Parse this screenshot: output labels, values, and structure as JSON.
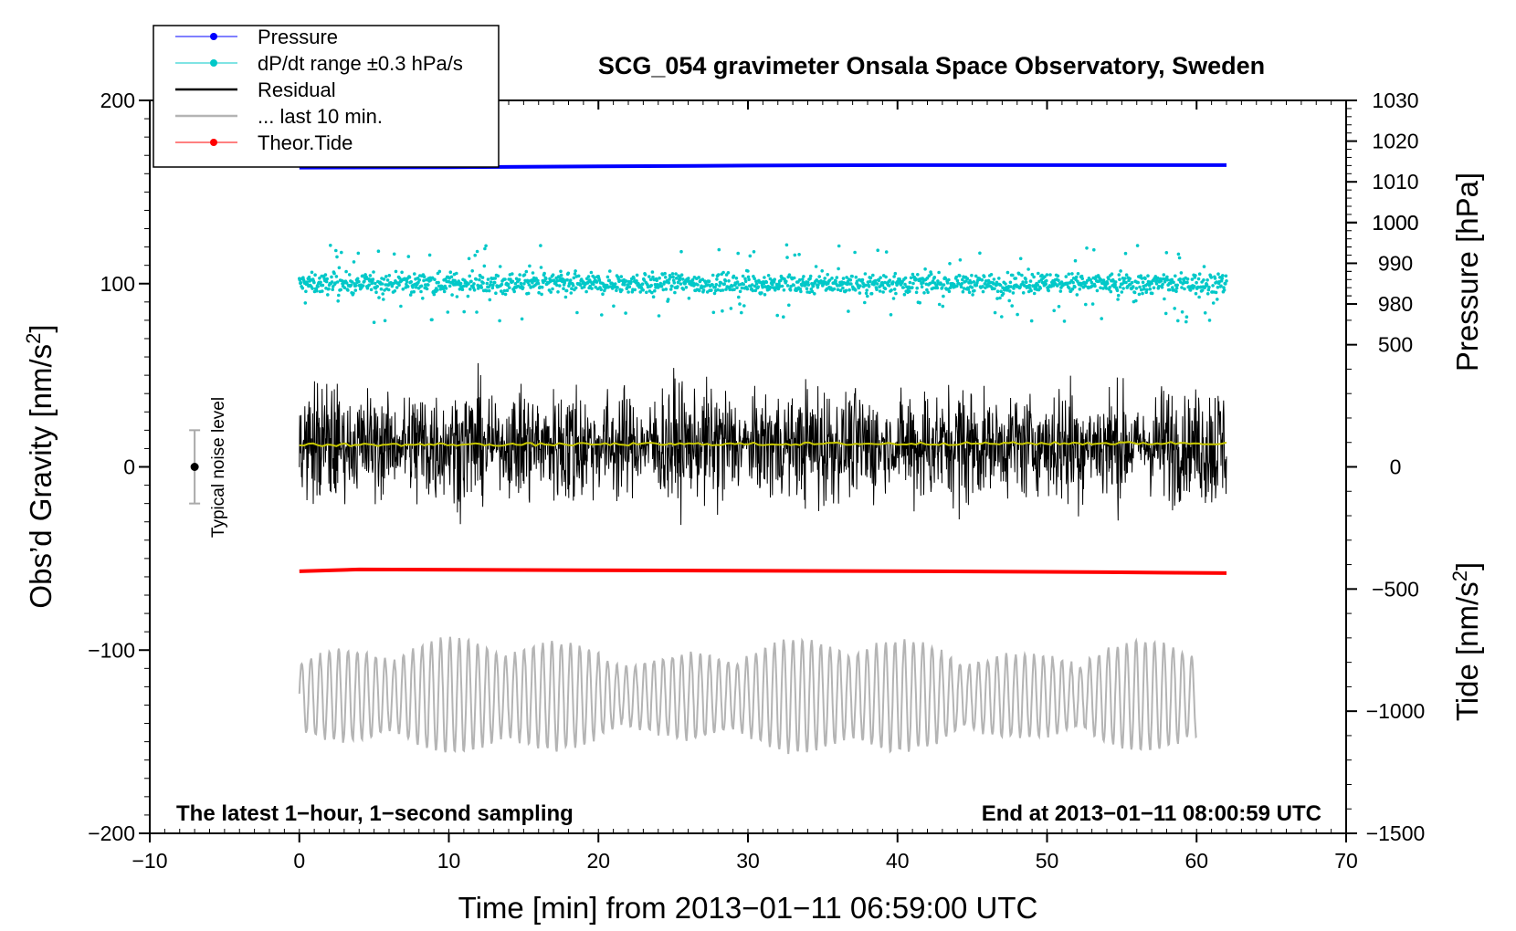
{
  "chart_data": {
    "type": "line",
    "title": "SCG_054 gravimeter Onsala Space Observatory, Sweden",
    "xlabel": "Time [min] from 2013−01−11 06:59:00 UTC",
    "ylabel_left": "Obs’d Gravity [nm/s",
    "ylabel_left_sup": "2",
    "ylabel_left_close": "]",
    "ylabel_right_pressure": "Pressure [hPa]",
    "ylabel_right_tide": "Tide [nm/s",
    "ylabel_right_tide_sup": "2",
    "ylabel_right_tide_close": "]",
    "xlim": [
      -10,
      70
    ],
    "ylim_left": [
      -200,
      200
    ],
    "ylim_pressure": [
      850,
      1030
    ],
    "ylim_tide": [
      -1500,
      1500
    ],
    "x_ticks": [
      -10,
      0,
      10,
      20,
      30,
      40,
      50,
      60,
      70
    ],
    "x_tick_labels": [
      "−10",
      "0",
      "10",
      "20",
      "30",
      "40",
      "50",
      "60",
      "70"
    ],
    "y_left_ticks": [
      -200,
      -100,
      0,
      100,
      200
    ],
    "y_left_tick_labels": [
      "−200",
      "−100",
      "0",
      "100",
      "200"
    ],
    "y_pressure_ticks": [
      980,
      990,
      1000,
      1010,
      1020,
      1030
    ],
    "y_pressure_tick_labels": [
      "980",
      "990",
      "1000",
      "1010",
      "1020",
      "1030"
    ],
    "y_tide_ticks": [
      -1500,
      -1000,
      -500,
      0,
      500,
      1000
    ],
    "y_tide_tick_labels": [
      "−1500",
      "−1000",
      "−500",
      "0",
      "500",
      "1000"
    ],
    "legend": {
      "position": "top-left",
      "entries": [
        {
          "label": "Pressure",
          "color": "#0000ff",
          "style": "line-dot"
        },
        {
          "label": "dP/dt range ±0.3 hPa/s",
          "color": "#00c8c8",
          "style": "line-dot"
        },
        {
          "label": "Residual",
          "color": "#000000",
          "style": "line"
        },
        {
          "label": "... last 10 min.",
          "color": "#b4b4b4",
          "style": "line"
        },
        {
          "label": "Theor.Tide",
          "color": "#ff0000",
          "style": "line-dot"
        }
      ]
    },
    "annotations": {
      "bottom_left": "The latest 1−hour, 1−second sampling",
      "bottom_right": "End at 2013−01−11 08:00:59 UTC",
      "noise_label": "Typical noise level"
    },
    "noise_bar": {
      "x": -7,
      "center": 0,
      "half_range": 20
    },
    "series": [
      {
        "name": "Pressure",
        "axis": "pressure",
        "color": "#0000ff",
        "x": [
          0,
          10,
          20,
          30,
          40,
          50,
          62
        ],
        "y": [
          1013.5,
          1013.6,
          1013.8,
          1014.0,
          1014.1,
          1014.1,
          1014.1
        ]
      },
      {
        "name": "dP/dt range ±0.3 hPa/s",
        "axis": "left",
        "color": "#00c8c8",
        "center": 100,
        "typical_spread": 5,
        "max_spread": 25,
        "x_range": [
          0,
          62
        ]
      },
      {
        "name": "Residual",
        "axis": "left",
        "color": "#000000",
        "center": 12,
        "amplitude_range": [
          -40,
          62
        ],
        "x_range": [
          0,
          62
        ]
      },
      {
        "name": "Residual mean",
        "axis": "left",
        "color": "#c8c800",
        "x": [
          0,
          62
        ],
        "y": [
          12,
          13
        ]
      },
      {
        "name": "... last 10 min.",
        "axis": "left",
        "color": "#b4b4b4",
        "center": -125,
        "amplitude_range": [
          -160,
          -82
        ],
        "x_range": [
          0,
          60
        ]
      },
      {
        "name": "Theor.Tide",
        "axis": "left",
        "color": "#ff0000",
        "x": [
          0,
          4,
          22,
          42,
          54,
          62
        ],
        "y": [
          -57,
          -56,
          -56.5,
          -57,
          -57.5,
          -58
        ]
      }
    ]
  }
}
